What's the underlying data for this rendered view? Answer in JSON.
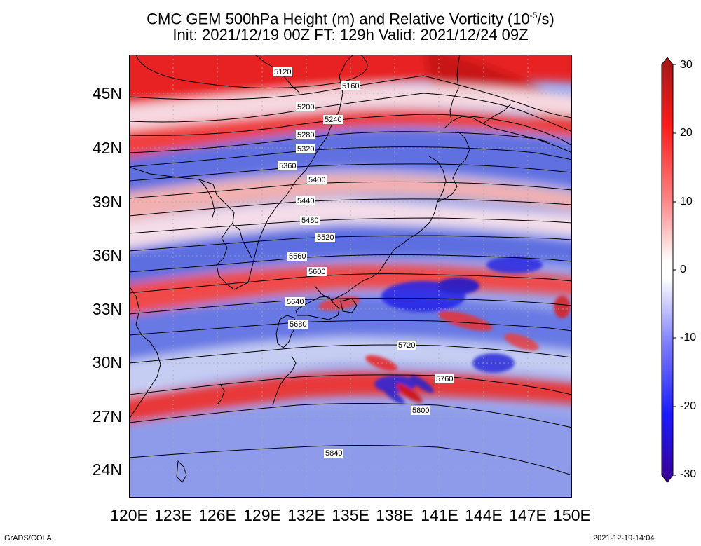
{
  "title_line1_pre": "CMC GEM 500hPa Height (m) and Relative Vorticity (10",
  "title_line1_sup": "-5",
  "title_line1_post": "/s)",
  "title_line2": "Init: 2021/12/19 00Z  FT: 129h  Valid: 2021/12/24 09Z",
  "lat_labels": [
    "45N",
    "42N",
    "39N",
    "36N",
    "33N",
    "30N",
    "27N",
    "24N"
  ],
  "lon_labels": [
    "120E",
    "123E",
    "126E",
    "129E",
    "132E",
    "135E",
    "138E",
    "141E",
    "144E",
    "147E",
    "150E"
  ],
  "colorbar": {
    "ticks": [
      "30",
      "20",
      "10",
      "0",
      "-10",
      "-20",
      "-30"
    ],
    "colors": {
      "strong_positive": "#a01818",
      "positive": "#ff1a1a",
      "zero": "#ffffff",
      "negative": "#1a1aff",
      "strong_negative": "#3a0090"
    }
  },
  "contours": [
    {
      "label": "5120"
    },
    {
      "label": "5160"
    },
    {
      "label": "5200"
    },
    {
      "label": "5240"
    },
    {
      "label": "5280"
    },
    {
      "label": "5320"
    },
    {
      "label": "5360"
    },
    {
      "label": "5400"
    },
    {
      "label": "5440"
    },
    {
      "label": "5480"
    },
    {
      "label": "5520"
    },
    {
      "label": "5560"
    },
    {
      "label": "5600"
    },
    {
      "label": "5640"
    },
    {
      "label": "5680"
    },
    {
      "label": "5720"
    },
    {
      "label": "5760"
    },
    {
      "label": "5800"
    },
    {
      "label": "5840"
    }
  ],
  "footer_left": "GrADS/COLA",
  "footer_right": "2021-12-19-14:04"
}
